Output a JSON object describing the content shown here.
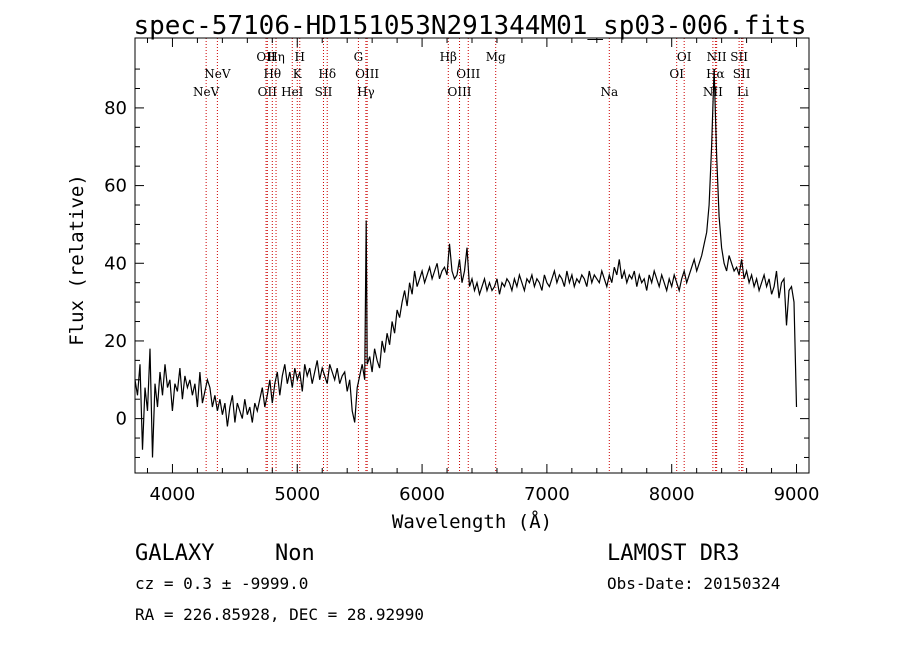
{
  "chart_data": {
    "type": "line",
    "title": "spec-57106-HD151053N291344M01_sp03-006.fits",
    "xlabel": "Wavelength (Å)",
    "ylabel": "Flux (relative)",
    "xlim": [
      3700,
      9100
    ],
    "ylim": [
      -14,
      98
    ],
    "x_ticks": [
      4000,
      5000,
      6000,
      7000,
      8000,
      9000
    ],
    "x_tick_labels": [
      "4000",
      "5000",
      "6000",
      "7000",
      "8000",
      "9000"
    ],
    "y_ticks": [
      0,
      20,
      40,
      60,
      80
    ],
    "y_tick_labels": [
      "0",
      "20",
      "40",
      "60",
      "80"
    ],
    "grid": false,
    "line_color": "#000000",
    "marker_color": "#cc0000",
    "spectral_lines": [
      {
        "label": "NeV",
        "x": 4270,
        "row": 2
      },
      {
        "label": "NeV",
        "x": 4360,
        "row": 1
      },
      {
        "label": "OII",
        "x": 4750,
        "row": 0
      },
      {
        "label": "OII",
        "x": 4760,
        "row": 2
      },
      {
        "label": "Hη",
        "x": 4830,
        "row": 0
      },
      {
        "label": "Hθ",
        "x": 4800,
        "row": 1
      },
      {
        "label": "HeI",
        "x": 4960,
        "row": 2
      },
      {
        "label": "H",
        "x": 5020,
        "row": 0
      },
      {
        "label": "K",
        "x": 5000,
        "row": 1
      },
      {
        "label": "Hδ",
        "x": 5240,
        "row": 1
      },
      {
        "label": "SII",
        "x": 5210,
        "row": 2
      },
      {
        "label": "G",
        "x": 5490,
        "row": 0
      },
      {
        "label": "OIII",
        "x": 5560,
        "row": 1
      },
      {
        "label": "Hγ",
        "x": 5550,
        "row": 2
      },
      {
        "label": "Hβ",
        "x": 6210,
        "row": 0
      },
      {
        "label": "OIII",
        "x": 6300,
        "row": 2
      },
      {
        "label": "OIII",
        "x": 6370,
        "row": 1
      },
      {
        "label": "Mg",
        "x": 6590,
        "row": 0
      },
      {
        "label": "Na",
        "x": 7500,
        "row": 2
      },
      {
        "label": "OI",
        "x": 8040,
        "row": 1
      },
      {
        "label": "OI",
        "x": 8100,
        "row": 0
      },
      {
        "label": "NII",
        "x": 8330,
        "row": 2
      },
      {
        "label": "NII",
        "x": 8360,
        "row": 0
      },
      {
        "label": "Hα",
        "x": 8350,
        "row": 1
      },
      {
        "label": "SII",
        "x": 8540,
        "row": 0
      },
      {
        "label": "SII",
        "x": 8560,
        "row": 1
      },
      {
        "label": "Li",
        "x": 8570,
        "row": 2
      }
    ],
    "series": [
      {
        "x": [
          3700,
          3720,
          3740,
          3760,
          3780,
          3800,
          3820,
          3840,
          3860,
          3880,
          3900,
          3920,
          3940,
          3960,
          3980,
          4000,
          4020,
          4040,
          4060,
          4080,
          4100,
          4120,
          4140,
          4160,
          4180,
          4200,
          4220,
          4240,
          4260,
          4280,
          4300,
          4320,
          4340,
          4360,
          4380,
          4400,
          4420,
          4440,
          4460,
          4480,
          4500,
          4520,
          4540,
          4560,
          4580,
          4600,
          4620,
          4640,
          4660,
          4680,
          4700,
          4720,
          4740,
          4760,
          4780,
          4800,
          4820,
          4840,
          4860,
          4880,
          4900,
          4920,
          4940,
          4960,
          4980,
          5000,
          5020,
          5040,
          5060,
          5080,
          5100,
          5120,
          5140,
          5160,
          5180,
          5200,
          5220,
          5240,
          5260,
          5280,
          5300,
          5320,
          5340,
          5360,
          5380,
          5400,
          5420,
          5440,
          5460,
          5480,
          5500,
          5520,
          5540,
          5552,
          5560,
          5580,
          5600,
          5620,
          5640,
          5660,
          5680,
          5700,
          5720,
          5740,
          5760,
          5780,
          5800,
          5820,
          5840,
          5860,
          5880,
          5900,
          5920,
          5940,
          5960,
          5980,
          6000,
          6020,
          6040,
          6060,
          6080,
          6100,
          6120,
          6140,
          6160,
          6180,
          6200,
          6220,
          6240,
          6260,
          6280,
          6300,
          6320,
          6340,
          6360,
          6380,
          6400,
          6420,
          6440,
          6460,
          6480,
          6500,
          6520,
          6540,
          6560,
          6580,
          6600,
          6620,
          6640,
          6660,
          6680,
          6700,
          6720,
          6740,
          6760,
          6780,
          6800,
          6820,
          6840,
          6860,
          6880,
          6900,
          6920,
          6940,
          6960,
          6980,
          7000,
          7020,
          7040,
          7060,
          7080,
          7100,
          7120,
          7140,
          7160,
          7180,
          7200,
          7220,
          7240,
          7260,
          7280,
          7300,
          7320,
          7340,
          7360,
          7380,
          7400,
          7420,
          7440,
          7460,
          7480,
          7500,
          7520,
          7540,
          7560,
          7580,
          7600,
          7620,
          7640,
          7660,
          7680,
          7700,
          7720,
          7740,
          7760,
          7780,
          7800,
          7820,
          7840,
          7860,
          7880,
          7900,
          7920,
          7940,
          7960,
          7980,
          8000,
          8020,
          8040,
          8060,
          8080,
          8100,
          8120,
          8140,
          8160,
          8180,
          8200,
          8220,
          8240,
          8260,
          8280,
          8300,
          8320,
          8340,
          8360,
          8380,
          8400,
          8420,
          8440,
          8460,
          8480,
          8500,
          8520,
          8540,
          8560,
          8580,
          8600,
          8620,
          8640,
          8660,
          8680,
          8700,
          8720,
          8740,
          8760,
          8780,
          8800,
          8820,
          8840,
          8860,
          8880,
          8900,
          8920,
          8940,
          8960,
          8980,
          9000
        ],
        "y": [
          10,
          6,
          14,
          -8,
          8,
          2,
          18,
          -10,
          9,
          3,
          12,
          6,
          14,
          8,
          10,
          2,
          9,
          7,
          13,
          5,
          11,
          8,
          10,
          6,
          9,
          3,
          12,
          4,
          7,
          10,
          8,
          3,
          6,
          2,
          5,
          1,
          4,
          -2,
          3,
          6,
          -1,
          4,
          2,
          0,
          5,
          1,
          3,
          -1,
          4,
          2,
          5,
          8,
          3,
          6,
          10,
          4,
          9,
          12,
          6,
          11,
          14,
          9,
          12,
          8,
          13,
          10,
          12,
          7,
          14,
          11,
          13,
          9,
          12,
          15,
          10,
          13,
          11,
          9,
          14,
          12,
          10,
          13,
          9,
          11,
          12,
          7,
          10,
          2,
          -1,
          8,
          11,
          14,
          10,
          51,
          14,
          16,
          12,
          18,
          15,
          13,
          20,
          17,
          22,
          19,
          25,
          22,
          28,
          26,
          30,
          33,
          29,
          35,
          32,
          38,
          34,
          36,
          38,
          35,
          37,
          39,
          36,
          38,
          40,
          36,
          38,
          39,
          37,
          45,
          38,
          36,
          37,
          41,
          35,
          38,
          44,
          34,
          36,
          33,
          35,
          32,
          34,
          36,
          33,
          35,
          33,
          34,
          36,
          32,
          35,
          34,
          36,
          35,
          33,
          36,
          34,
          37,
          35,
          33,
          36,
          35,
          37,
          34,
          36,
          35,
          33,
          37,
          35,
          34,
          36,
          38,
          35,
          37,
          36,
          34,
          38,
          35,
          37,
          34,
          36,
          35,
          37,
          36,
          34,
          38,
          35,
          37,
          36,
          35,
          38,
          36,
          34,
          37,
          35,
          39,
          37,
          41,
          36,
          38,
          35,
          37,
          36,
          38,
          34,
          37,
          35,
          36,
          33,
          37,
          35,
          38,
          36,
          34,
          37,
          35,
          33,
          36,
          34,
          37,
          35,
          33,
          36,
          38,
          35,
          37,
          39,
          41,
          38,
          40,
          42,
          45,
          48,
          55,
          70,
          90,
          68,
          52,
          44,
          40,
          38,
          42,
          40,
          38,
          39,
          37,
          41,
          36,
          38,
          35,
          37,
          34,
          36,
          33,
          35,
          37,
          34,
          36,
          32,
          34,
          38,
          31,
          35,
          36,
          24,
          33,
          34,
          30,
          3
        ]
      }
    ]
  },
  "footer": {
    "object_class": "GALAXY",
    "subclass": "Non",
    "survey": "LAMOST DR3",
    "redshift_line": "cz = 0.3 ± -9999.0",
    "obs_date_line": "Obs-Date: 20150324",
    "coords_line": "RA = 226.85928, DEC =  28.92990"
  }
}
